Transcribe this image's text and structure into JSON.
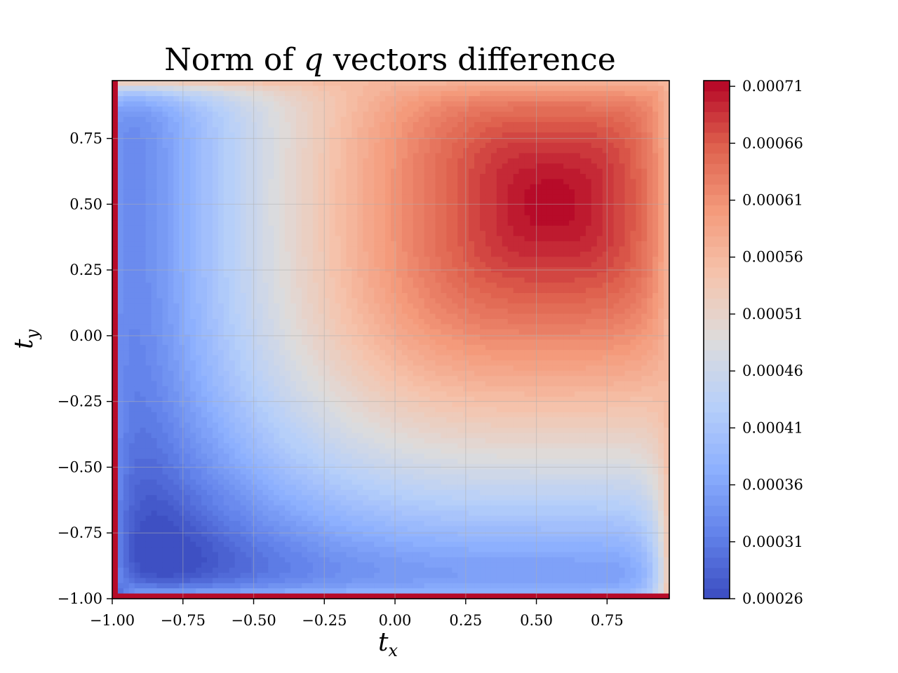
{
  "chart_data": {
    "type": "heatmap",
    "title": "Norm of q vectors difference",
    "title_parts": {
      "before": "Norm of ",
      "var": "q",
      "after": " vectors difference"
    },
    "xlabel": {
      "base": "t",
      "sub": "x"
    },
    "ylabel": {
      "base": "t",
      "sub": "y"
    },
    "xlim": [
      -1.0,
      0.97
    ],
    "ylim": [
      -1.0,
      0.97
    ],
    "x_ticks": [
      {
        "value": -1.0,
        "label": "−1.00"
      },
      {
        "value": -0.75,
        "label": "−0.75"
      },
      {
        "value": -0.5,
        "label": "−0.50"
      },
      {
        "value": -0.25,
        "label": "−0.25"
      },
      {
        "value": 0.0,
        "label": "0.00"
      },
      {
        "value": 0.25,
        "label": "0.25"
      },
      {
        "value": 0.5,
        "label": "0.50"
      },
      {
        "value": 0.75,
        "label": "0.75"
      }
    ],
    "y_ticks": [
      {
        "value": -1.0,
        "label": "−1.00"
      },
      {
        "value": -0.75,
        "label": "−0.75"
      },
      {
        "value": -0.5,
        "label": "−0.50"
      },
      {
        "value": -0.25,
        "label": "−0.25"
      },
      {
        "value": 0.0,
        "label": "0.00"
      },
      {
        "value": 0.25,
        "label": "0.25"
      },
      {
        "value": 0.5,
        "label": "0.50"
      },
      {
        "value": 0.75,
        "label": "0.75"
      }
    ],
    "grid": true,
    "colormap": "coolwarm",
    "colorbar": {
      "min": 0.00026,
      "max": 0.000715,
      "levels": 50,
      "ticks": [
        {
          "value": 0.00026,
          "label": "0.00026"
        },
        {
          "value": 0.00031,
          "label": "0.00031"
        },
        {
          "value": 0.00036,
          "label": "0.00036"
        },
        {
          "value": 0.00041,
          "label": "0.00041"
        },
        {
          "value": 0.00046,
          "label": "0.00046"
        },
        {
          "value": 0.00051,
          "label": "0.00051"
        },
        {
          "value": 0.00056,
          "label": "0.00056"
        },
        {
          "value": 0.00061,
          "label": "0.00061"
        },
        {
          "value": 0.00066,
          "label": "0.00066"
        },
        {
          "value": 0.00071,
          "label": "0.00071"
        }
      ]
    },
    "field": {
      "peak": [
        0.55,
        0.5
      ],
      "peak_value": 0.000715,
      "edge_value": 0.00056,
      "left_edge_min": 0.00035,
      "corner_min": 0.00026,
      "boundary_spike": 0.00071
    }
  }
}
